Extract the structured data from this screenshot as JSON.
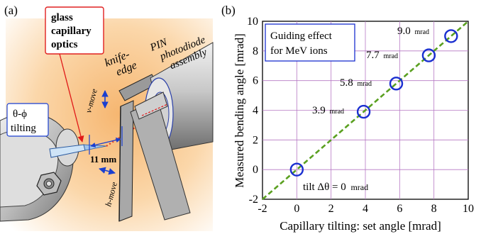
{
  "panel_a": {
    "panel_label": "(a)",
    "optics_line1": "glass",
    "optics_line2": "capillary",
    "optics_line3": "optics",
    "knife_line1": "knife-",
    "knife_line2": "edge",
    "pin_line1": "PIN",
    "pin_line2": "photodiode",
    "pin_line3": "assembly",
    "tilting_line1": "θ-ϕ",
    "tilting_line2": "tilting",
    "distance": "11 mm",
    "v_move": "v-move",
    "h_move": "h-move"
  },
  "panel_b": {
    "panel_label": "(b)",
    "legend_line1": "Guiding effect",
    "legend_line2": "for MeV ions",
    "ylabel": "Measured bending angle [mrad]",
    "xlabel": "Capillary tilting: set angle [mrad]",
    "annotations": [
      {
        "main": "tilt Δθ = 0",
        "unit": "mrad"
      },
      {
        "main": "3.9",
        "unit": "mrad"
      },
      {
        "main": "5.8",
        "unit": "mrad"
      },
      {
        "main": "7.7",
        "unit": "mrad"
      },
      {
        "main": "9.0",
        "unit": "mrad"
      }
    ]
  },
  "chart_data": {
    "type": "scatter",
    "xlim": [
      -2,
      10
    ],
    "ylim": [
      -2,
      10
    ],
    "xticks": [
      -2,
      0,
      2,
      4,
      6,
      8,
      10
    ],
    "yticks": [
      -2,
      0,
      2,
      4,
      6,
      8,
      10
    ],
    "grid": true,
    "points_x": [
      0,
      3.9,
      5.8,
      7.7,
      9.0
    ],
    "points_y": [
      0,
      3.9,
      5.8,
      7.7,
      9.0
    ],
    "reference_line": {
      "style": "dashed",
      "color": "#5aa020",
      "from": [
        -2,
        -2
      ],
      "to": [
        10,
        10
      ]
    },
    "marker_color": "#1a2fd0",
    "grid_color": "#b678c4"
  }
}
